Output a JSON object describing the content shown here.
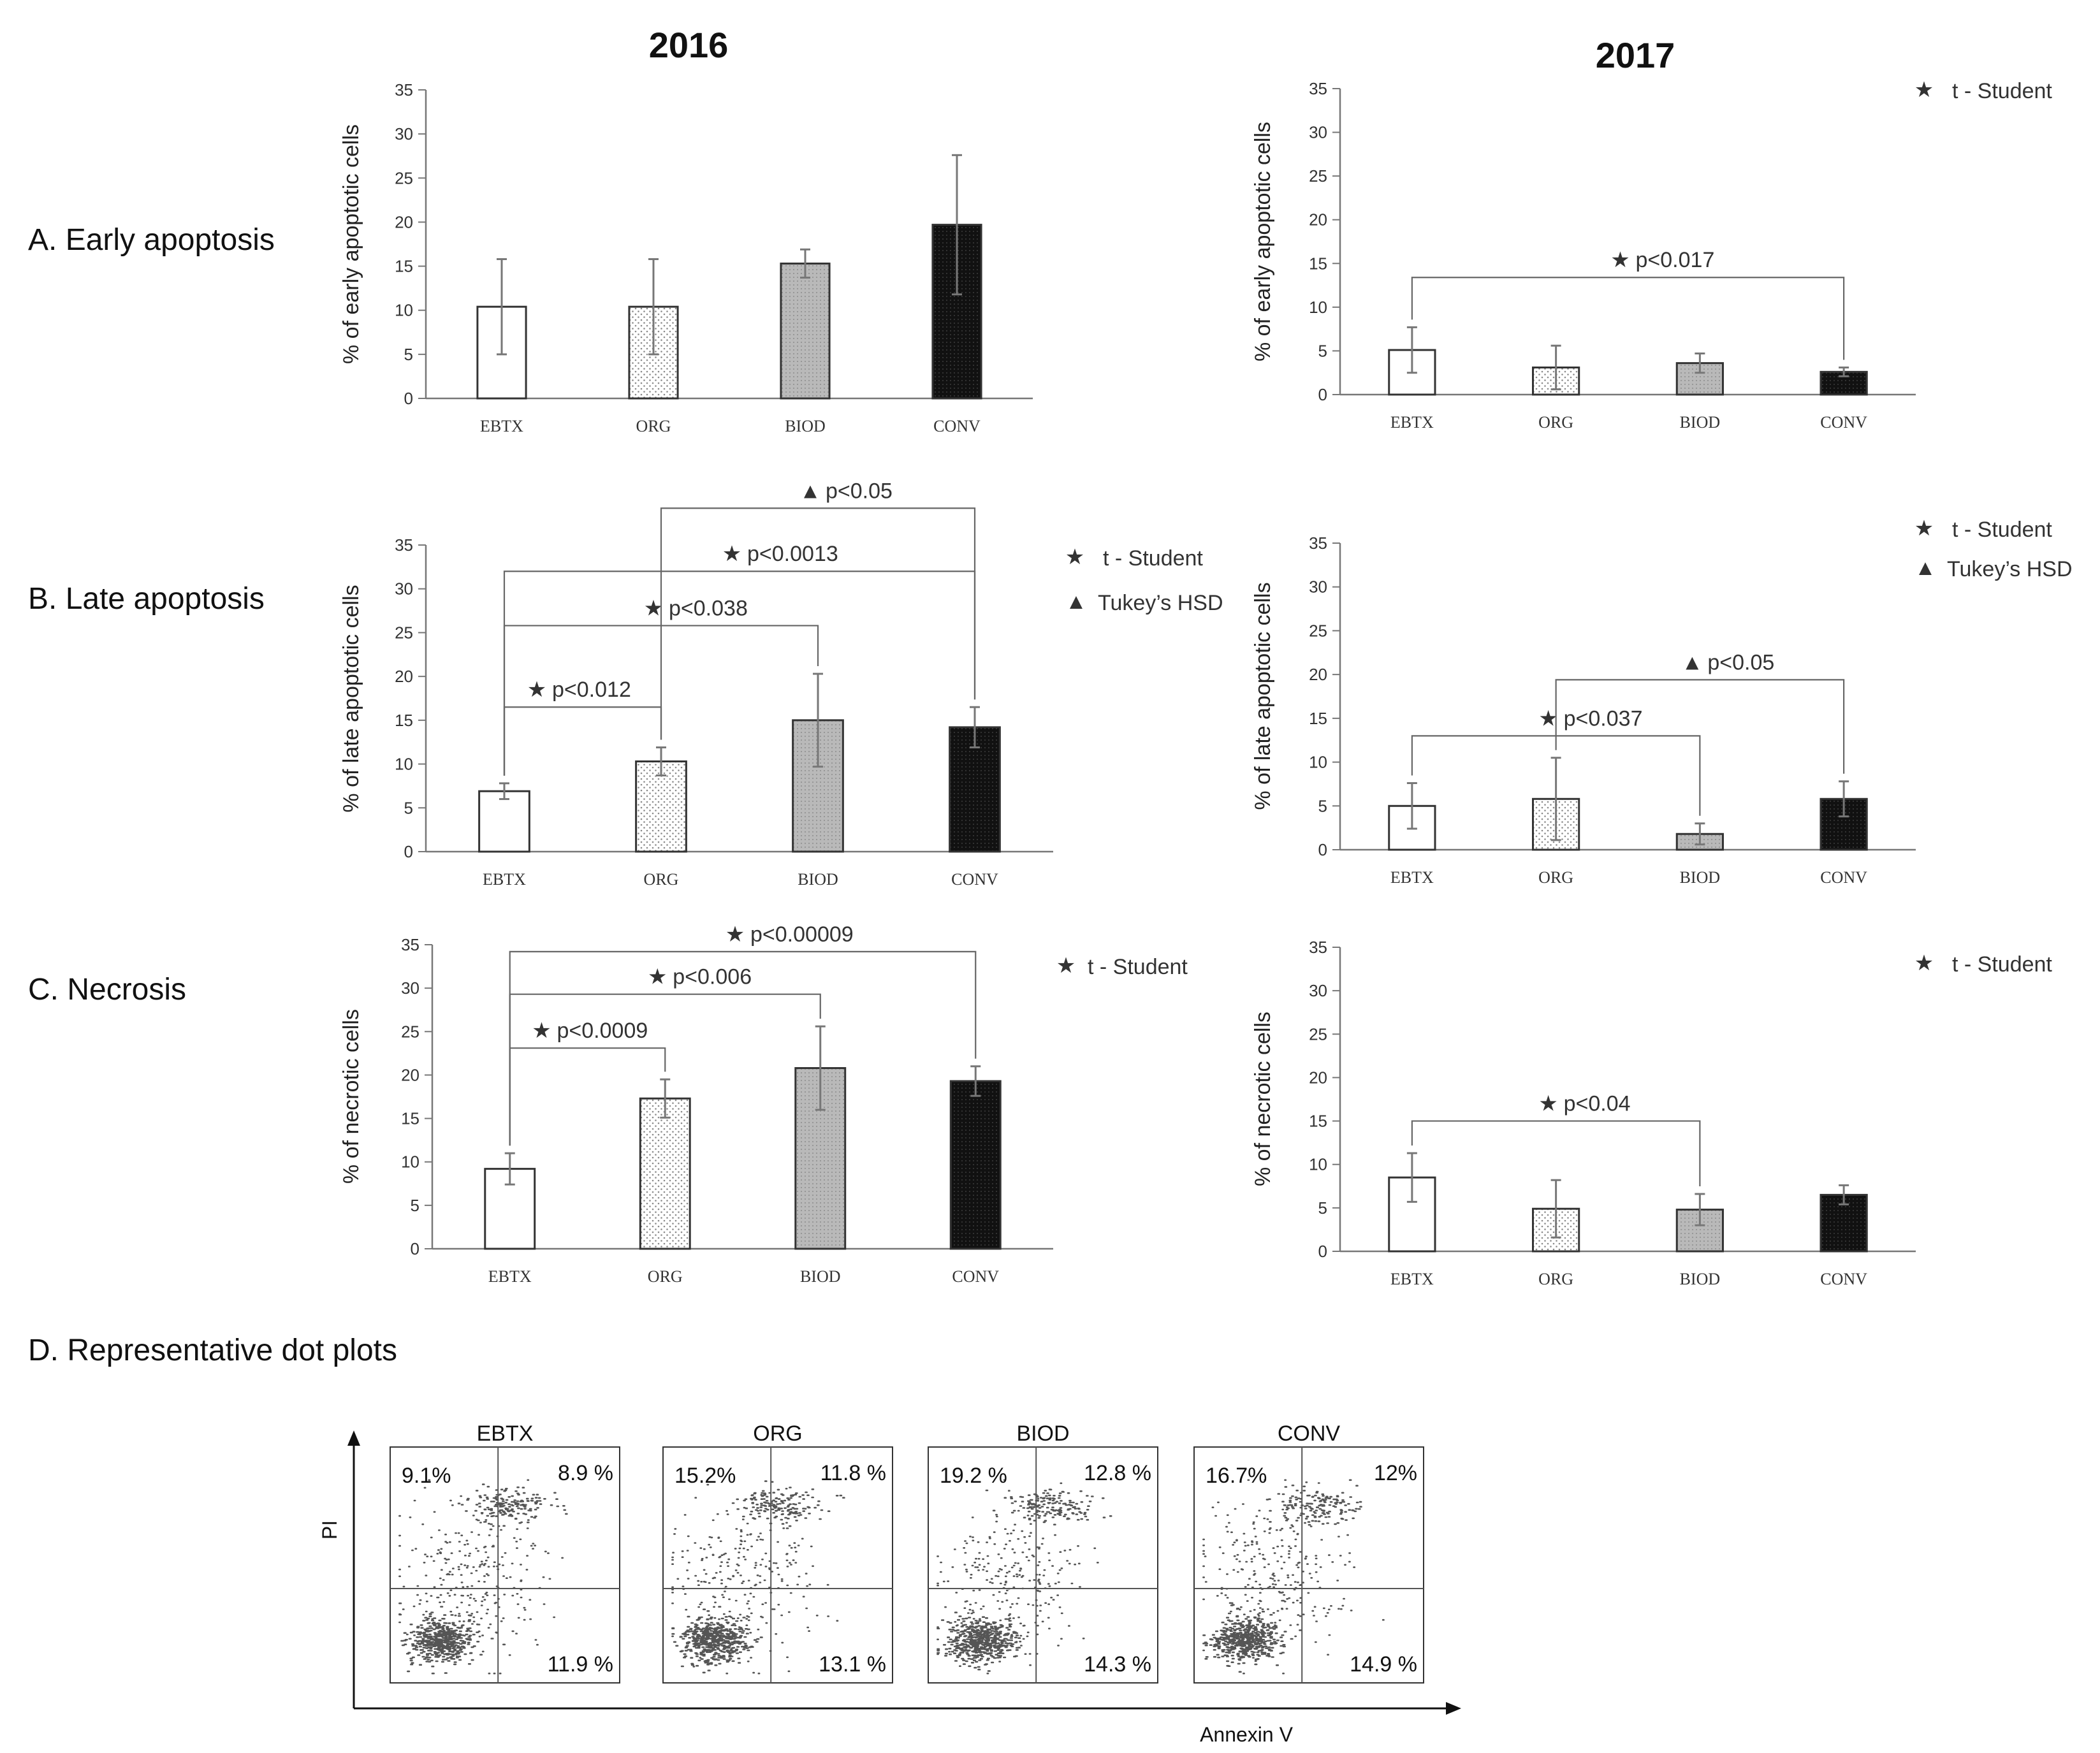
{
  "figure": {
    "year_left": "2016",
    "year_right": "2017",
    "rows": [
      {
        "label": "A. Early apoptosis",
        "ytitle": "% of early apoptotic cells"
      },
      {
        "label": "B. Late apoptosis",
        "ytitle": "% of late apoptotic cells"
      },
      {
        "label": "C. Necrosis",
        "ytitle": "% of necrotic cells"
      }
    ],
    "legend": {
      "t_student": "t - Student",
      "tukey": "Tukey’s HSD"
    },
    "dot_section": {
      "label": "D. Representative  dot plots",
      "y_axis": "PI",
      "x_axis": "Annexin V",
      "plots": [
        {
          "name": "EBTX",
          "ul": "9.1%",
          "ur": "8.9 %",
          "lr": "11.9 %"
        },
        {
          "name": "ORG",
          "ul": "15.2%",
          "ur": "11.8 %",
          "lr": "13.1 %"
        },
        {
          "name": "BIOD",
          "ul": "19.2 %",
          "ur": "12.8 %",
          "lr": "14.3 %"
        },
        {
          "name": "CONV",
          "ul": "16.7%",
          "ur": "12%",
          "lr": "14.9 %"
        }
      ]
    }
  },
  "colors": {
    "bar_white": "#ffffff",
    "bar_light": "#eeeeee",
    "bar_gray": "#bbbbbb",
    "bar_black": "#111111",
    "axis": "#777777",
    "bracket": "#666666"
  },
  "chart_data": [
    {
      "id": "A2016",
      "type": "bar",
      "title": "2016",
      "ylabel": "% of early apoptotic cells",
      "categories": [
        "EBTX",
        "ORG",
        "BIOD",
        "CONV"
      ],
      "values": [
        10.4,
        10.4,
        15.3,
        19.7
      ],
      "errors": [
        5.4,
        5.4,
        1.6,
        7.9
      ],
      "ylim": [
        0,
        35
      ],
      "yticks": [
        0,
        5,
        10,
        15,
        20,
        25,
        30,
        35
      ],
      "brackets": [],
      "legend": []
    },
    {
      "id": "A2017",
      "type": "bar",
      "title": "2017",
      "ylabel": "% of early apoptotic cells",
      "categories": [
        "EBTX",
        "ORG",
        "BIOD",
        "CONV"
      ],
      "values": [
        5.1,
        3.1,
        3.6,
        2.6
      ],
      "errors": [
        2.6,
        2.5,
        1.1,
        0.5
      ],
      "ylim": [
        0,
        35
      ],
      "yticks": [
        0,
        5,
        10,
        15,
        20,
        25,
        30,
        35
      ],
      "brackets": [
        {
          "from": 0,
          "to": 3,
          "at": 13.4,
          "label": "p˂0.017",
          "test": "star"
        }
      ],
      "legend": [
        "t_student"
      ]
    },
    {
      "id": "B2016",
      "type": "bar",
      "title": "2016",
      "ylabel": "% of late apoptotic cells",
      "categories": [
        "EBTX",
        "ORG",
        "BIOD",
        "CONV"
      ],
      "values": [
        6.9,
        10.3,
        15.0,
        14.2
      ],
      "errors": [
        0.9,
        1.6,
        5.3,
        2.3
      ],
      "ylim": [
        0,
        35
      ],
      "yticks": [
        0,
        5,
        10,
        15,
        20,
        25,
        30,
        35
      ],
      "brackets": [
        {
          "from": 0,
          "to": 1,
          "at": 16.5,
          "label": "p˂0.012",
          "test": "star"
        },
        {
          "from": 0,
          "to": 2,
          "at": 25.8,
          "label": "p˂0.038",
          "test": "star"
        },
        {
          "from": 0,
          "to": 3,
          "at": 32.0,
          "label": "p˂0.0013",
          "test": "star"
        },
        {
          "from": 1,
          "to": 3,
          "at": 39.2,
          "label": "p˂0.05",
          "test": "triangle"
        }
      ],
      "legend": [
        "t_student",
        "tukey"
      ]
    },
    {
      "id": "B2017",
      "type": "bar",
      "title": "2017",
      "ylabel": "% of late apoptotic cells",
      "categories": [
        "EBTX",
        "ORG",
        "BIOD",
        "CONV"
      ],
      "values": [
        5.0,
        5.8,
        1.8,
        5.8
      ],
      "errors": [
        2.6,
        4.7,
        1.2,
        2.0
      ],
      "ylim": [
        0,
        35
      ],
      "yticks": [
        0,
        5,
        10,
        15,
        20,
        25,
        30,
        35
      ],
      "brackets": [
        {
          "from": 0,
          "to": 2,
          "at": 13.0,
          "label": "p˂0.037",
          "test": "star"
        },
        {
          "from": 1,
          "to": 3,
          "at": 19.4,
          "label": "p˂0.05",
          "test": "triangle"
        }
      ],
      "legend": [
        "t_student",
        "tukey"
      ]
    },
    {
      "id": "C2016",
      "type": "bar",
      "title": "2016",
      "ylabel": "% of necrotic cells",
      "categories": [
        "EBTX",
        "ORG",
        "BIOD",
        "CONV"
      ],
      "values": [
        9.2,
        17.3,
        20.8,
        19.3
      ],
      "errors": [
        1.8,
        2.2,
        4.8,
        1.7
      ],
      "ylim": [
        0,
        35
      ],
      "yticks": [
        0,
        5,
        10,
        15,
        20,
        25,
        30,
        35
      ],
      "brackets": [
        {
          "from": 0,
          "to": 1,
          "at": 23.1,
          "label": "p˂0.0009",
          "test": "star"
        },
        {
          "from": 0,
          "to": 2,
          "at": 29.3,
          "label": "p˂0.006",
          "test": "star"
        },
        {
          "from": 0,
          "to": 3,
          "at": 34.2,
          "label": "p˂0.00009",
          "test": "star"
        }
      ],
      "legend": [
        "t_student"
      ]
    },
    {
      "id": "C2017",
      "type": "bar",
      "title": "2017",
      "ylabel": "% of necrotic cells",
      "categories": [
        "EBTX",
        "ORG",
        "BIOD",
        "CONV"
      ],
      "values": [
        8.5,
        4.9,
        4.8,
        6.5
      ],
      "errors": [
        2.8,
        3.3,
        1.8,
        1.1
      ],
      "ylim": [
        0,
        35
      ],
      "yticks": [
        0,
        5,
        10,
        15,
        20,
        25,
        30,
        35
      ],
      "brackets": [
        {
          "from": 0,
          "to": 2,
          "at": 15.0,
          "label": "p˂0.04",
          "test": "star"
        }
      ],
      "legend": [
        "t_student"
      ]
    }
  ]
}
